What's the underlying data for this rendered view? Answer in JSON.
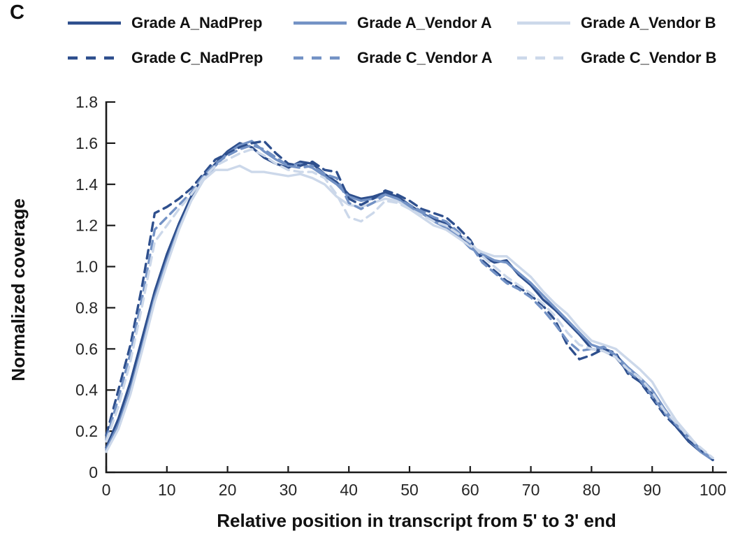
{
  "panel_label": "C",
  "axis_text_color": "#262626",
  "axis_line_color": "#1a1a1a",
  "chart_data": {
    "type": "line",
    "title": "",
    "xlabel": "Relative position in transcript from 5' to 3' end",
    "ylabel": "Normalized coverage",
    "xlim": [
      0,
      100
    ],
    "ylim": [
      0,
      1.8
    ],
    "grid": "off",
    "legend_position": "top",
    "xtick_labels": [
      "0",
      "10",
      "20",
      "30",
      "40",
      "50",
      "60",
      "70",
      "80",
      "90",
      "100"
    ],
    "xtick_values": [
      0,
      10,
      20,
      30,
      40,
      50,
      60,
      70,
      80,
      90,
      100
    ],
    "ytick_labels": [
      "0",
      "0.2",
      "0.4",
      "0.6",
      "0.8",
      "1.0",
      "1.2",
      "1.4",
      "1.6",
      "1.8"
    ],
    "ytick_values": [
      0,
      0.2,
      0.4,
      0.6,
      0.8,
      1.0,
      1.2,
      1.4,
      1.6,
      1.8
    ],
    "x": [
      0,
      2,
      4,
      6,
      8,
      10,
      12,
      14,
      16,
      18,
      20,
      22,
      24,
      26,
      28,
      30,
      32,
      34,
      36,
      38,
      40,
      42,
      44,
      46,
      48,
      50,
      52,
      54,
      56,
      58,
      60,
      62,
      64,
      66,
      68,
      70,
      72,
      74,
      76,
      78,
      80,
      82,
      84,
      86,
      88,
      90,
      92,
      94,
      96,
      98,
      100
    ],
    "series": [
      {
        "name": "Grade A_NadPrep",
        "color": "#2E4F8D",
        "line_style": "solid",
        "values": [
          0.12,
          0.26,
          0.44,
          0.66,
          0.88,
          1.06,
          1.21,
          1.34,
          1.44,
          1.5,
          1.56,
          1.6,
          1.58,
          1.53,
          1.5,
          1.48,
          1.51,
          1.5,
          1.45,
          1.41,
          1.35,
          1.33,
          1.34,
          1.36,
          1.34,
          1.3,
          1.26,
          1.23,
          1.21,
          1.16,
          1.1,
          1.05,
          1.02,
          1.03,
          0.96,
          0.91,
          0.84,
          0.79,
          0.73,
          0.67,
          0.6,
          0.59,
          0.56,
          0.49,
          0.44,
          0.38,
          0.3,
          0.22,
          0.15,
          0.1,
          0.06
        ]
      },
      {
        "name": "Grade A_Vendor A",
        "color": "#7392C5",
        "line_style": "solid",
        "values": [
          0.11,
          0.23,
          0.4,
          0.62,
          0.85,
          1.03,
          1.19,
          1.32,
          1.42,
          1.49,
          1.55,
          1.59,
          1.61,
          1.56,
          1.52,
          1.49,
          1.5,
          1.48,
          1.44,
          1.4,
          1.34,
          1.32,
          1.33,
          1.35,
          1.33,
          1.29,
          1.26,
          1.22,
          1.19,
          1.15,
          1.09,
          1.06,
          1.03,
          1.02,
          0.97,
          0.92,
          0.86,
          0.8,
          0.74,
          0.68,
          0.62,
          0.6,
          0.57,
          0.51,
          0.46,
          0.4,
          0.31,
          0.23,
          0.16,
          0.1,
          0.06
        ]
      },
      {
        "name": "Grade A_Vendor B",
        "color": "#CCD8EA",
        "line_style": "solid",
        "values": [
          0.1,
          0.21,
          0.38,
          0.6,
          0.83,
          1.01,
          1.18,
          1.32,
          1.42,
          1.47,
          1.47,
          1.49,
          1.46,
          1.46,
          1.45,
          1.44,
          1.45,
          1.43,
          1.4,
          1.34,
          1.3,
          1.29,
          1.31,
          1.33,
          1.32,
          1.28,
          1.24,
          1.2,
          1.18,
          1.14,
          1.1,
          1.07,
          1.05,
          1.05,
          1.0,
          0.95,
          0.88,
          0.82,
          0.77,
          0.7,
          0.64,
          0.62,
          0.6,
          0.55,
          0.5,
          0.44,
          0.34,
          0.25,
          0.18,
          0.11,
          0.07
        ]
      },
      {
        "name": "Grade C_NadPrep",
        "color": "#2E4F8D",
        "line_style": "dashed",
        "values": [
          0.18,
          0.4,
          0.62,
          0.92,
          1.26,
          1.29,
          1.33,
          1.38,
          1.45,
          1.52,
          1.55,
          1.58,
          1.6,
          1.61,
          1.55,
          1.5,
          1.49,
          1.51,
          1.47,
          1.46,
          1.33,
          1.3,
          1.33,
          1.37,
          1.35,
          1.32,
          1.28,
          1.26,
          1.24,
          1.19,
          1.13,
          1.03,
          0.98,
          0.93,
          0.9,
          0.86,
          0.81,
          0.74,
          0.62,
          0.55,
          0.57,
          0.6,
          0.58,
          0.48,
          0.44,
          0.36,
          0.28,
          0.22,
          0.16,
          0.11,
          0.06
        ]
      },
      {
        "name": "Grade C_Vendor A",
        "color": "#7392C5",
        "line_style": "dashed",
        "values": [
          0.16,
          0.36,
          0.58,
          0.86,
          1.18,
          1.24,
          1.3,
          1.36,
          1.44,
          1.5,
          1.54,
          1.57,
          1.59,
          1.57,
          1.53,
          1.49,
          1.48,
          1.49,
          1.45,
          1.43,
          1.31,
          1.28,
          1.31,
          1.35,
          1.33,
          1.3,
          1.27,
          1.24,
          1.22,
          1.17,
          1.11,
          1.02,
          0.97,
          0.92,
          0.89,
          0.85,
          0.79,
          0.72,
          0.64,
          0.59,
          0.6,
          0.61,
          0.57,
          0.49,
          0.45,
          0.37,
          0.29,
          0.23,
          0.17,
          0.11,
          0.06
        ]
      },
      {
        "name": "Grade C_Vendor B",
        "color": "#CCD8EA",
        "line_style": "dashed",
        "values": [
          0.15,
          0.32,
          0.54,
          0.82,
          1.12,
          1.2,
          1.28,
          1.35,
          1.43,
          1.49,
          1.52,
          1.55,
          1.57,
          1.54,
          1.5,
          1.47,
          1.46,
          1.46,
          1.43,
          1.35,
          1.24,
          1.22,
          1.26,
          1.32,
          1.31,
          1.28,
          1.25,
          1.22,
          1.2,
          1.16,
          1.12,
          1.05,
          1.0,
          0.95,
          0.91,
          0.87,
          0.82,
          0.76,
          0.68,
          0.62,
          0.6,
          0.59,
          0.56,
          0.5,
          0.46,
          0.39,
          0.3,
          0.24,
          0.17,
          0.12,
          0.07
        ]
      }
    ]
  }
}
